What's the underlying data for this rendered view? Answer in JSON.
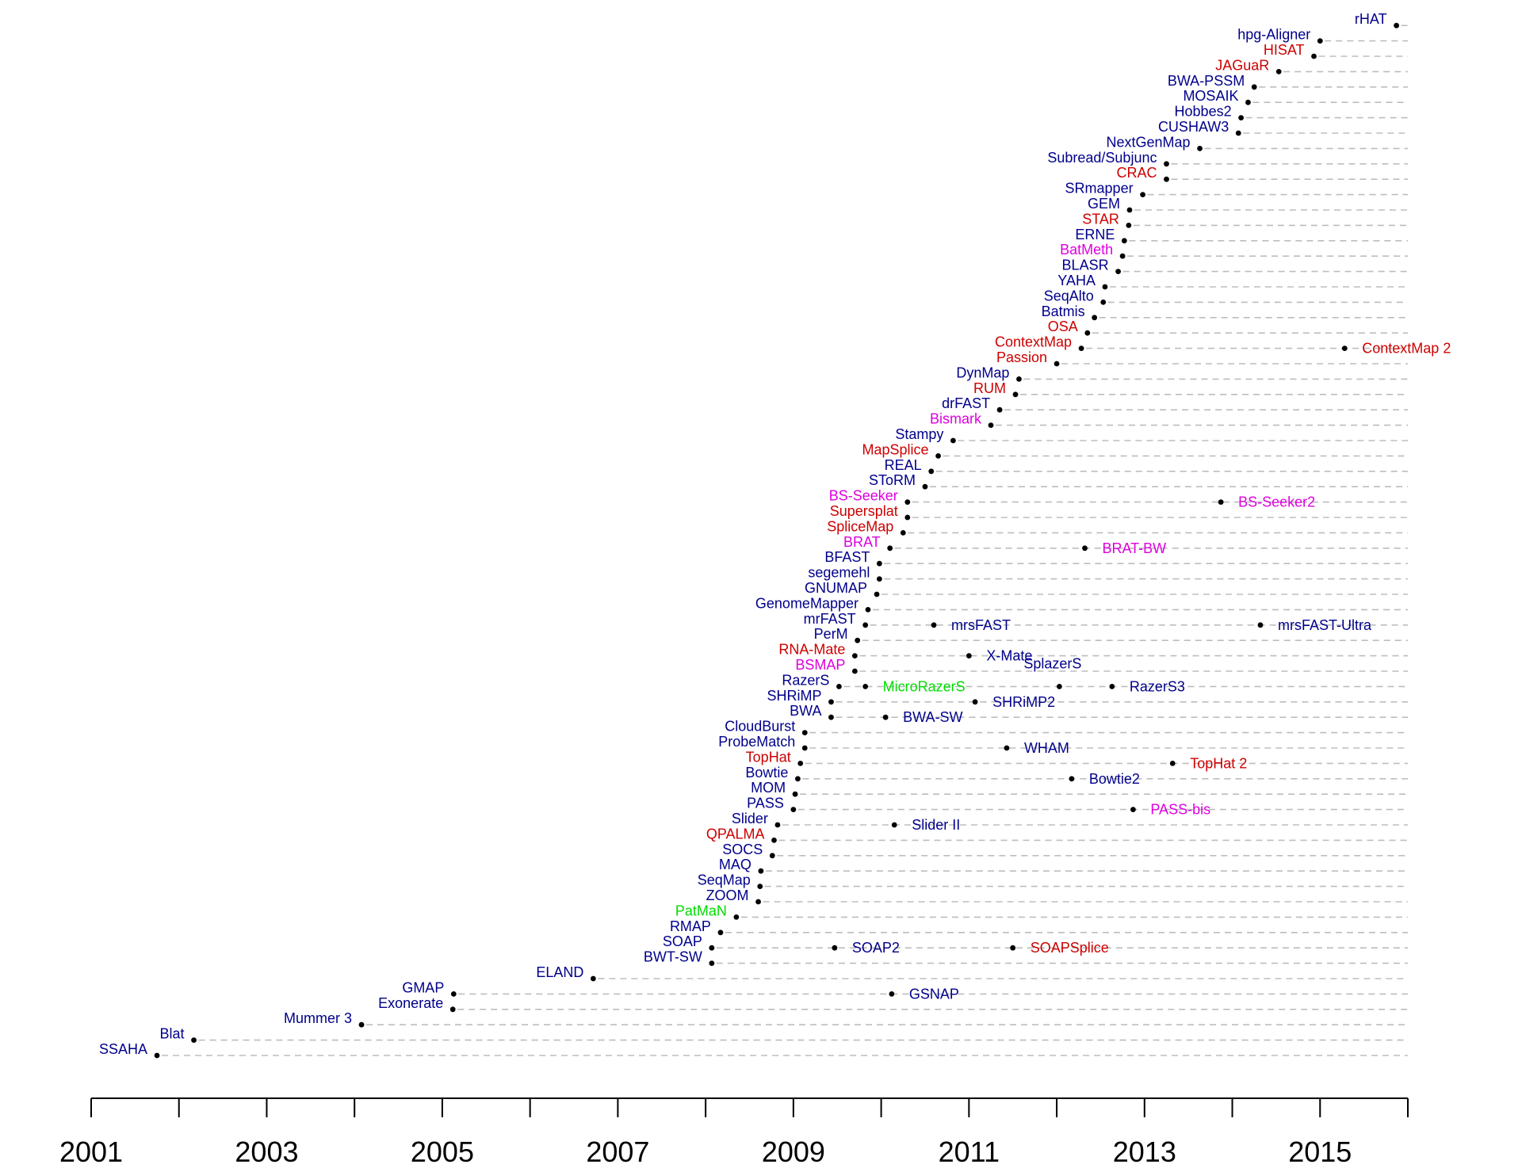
{
  "colors": {
    "blue": "#00008b",
    "red": "#cd0000",
    "magenta": "#dd00dd",
    "green": "#00dd00",
    "dash": "#bdbdbd",
    "point": "#000000",
    "axis": "#000000"
  },
  "chart_data": {
    "type": "scatter",
    "title": "",
    "xlabel": "",
    "ylabel": "",
    "xlim": [
      2001,
      2016
    ],
    "x_ticks": [
      2001,
      2002,
      2003,
      2004,
      2005,
      2006,
      2007,
      2008,
      2009,
      2010,
      2011,
      2012,
      2013,
      2014,
      2015,
      2016
    ],
    "x_tick_labels": [
      "2001",
      "2003",
      "2005",
      "2007",
      "2009",
      "2011",
      "2013",
      "2015"
    ],
    "x_tick_label_values": [
      2001,
      2003,
      2005,
      2007,
      2009,
      2011,
      2013,
      2015
    ],
    "grid": false,
    "rows": [
      {
        "tools": [
          {
            "name": "SSAHA",
            "x": 2001.75,
            "color": "blue"
          }
        ]
      },
      {
        "tools": [
          {
            "name": "Blat",
            "x": 2002.17,
            "color": "blue"
          }
        ]
      },
      {
        "tools": [
          {
            "name": "Mummer 3",
            "x": 2004.08,
            "color": "blue"
          }
        ]
      },
      {
        "tools": [
          {
            "name": "Exonerate",
            "x": 2005.12,
            "color": "blue"
          }
        ]
      },
      {
        "tools": [
          {
            "name": "GMAP",
            "x": 2005.13,
            "color": "blue"
          },
          {
            "name": "GSNAP",
            "x": 2010.12,
            "color": "blue"
          }
        ]
      },
      {
        "tools": [
          {
            "name": "ELAND",
            "x": 2006.72,
            "color": "blue"
          }
        ]
      },
      {
        "tools": [
          {
            "name": "BWT-SW",
            "x": 2008.07,
            "color": "blue"
          }
        ]
      },
      {
        "tools": [
          {
            "name": "SOAP",
            "x": 2008.07,
            "color": "blue"
          },
          {
            "name": "SOAP2",
            "x": 2009.47,
            "color": "blue"
          },
          {
            "name": "SOAPSplice",
            "x": 2011.5,
            "color": "red"
          }
        ]
      },
      {
        "tools": [
          {
            "name": "RMAP",
            "x": 2008.17,
            "color": "blue"
          }
        ]
      },
      {
        "tools": [
          {
            "name": "PatMaN",
            "x": 2008.35,
            "color": "green"
          }
        ]
      },
      {
        "tools": [
          {
            "name": "ZOOM",
            "x": 2008.6,
            "color": "blue"
          }
        ]
      },
      {
        "tools": [
          {
            "name": "SeqMap",
            "x": 2008.62,
            "color": "blue"
          }
        ]
      },
      {
        "tools": [
          {
            "name": "MAQ",
            "x": 2008.63,
            "color": "blue"
          }
        ]
      },
      {
        "tools": [
          {
            "name": "SOCS",
            "x": 2008.76,
            "color": "blue"
          }
        ]
      },
      {
        "tools": [
          {
            "name": "QPALMA",
            "x": 2008.78,
            "color": "red"
          }
        ]
      },
      {
        "tools": [
          {
            "name": "Slider",
            "x": 2008.82,
            "color": "blue"
          },
          {
            "name": "Slider II",
            "x": 2010.15,
            "color": "blue"
          }
        ]
      },
      {
        "tools": [
          {
            "name": "PASS",
            "x": 2009.0,
            "color": "blue"
          },
          {
            "name": "PASS-bis",
            "x": 2012.87,
            "color": "magenta"
          }
        ]
      },
      {
        "tools": [
          {
            "name": "MOM",
            "x": 2009.02,
            "color": "blue"
          }
        ]
      },
      {
        "tools": [
          {
            "name": "Bowtie",
            "x": 2009.05,
            "color": "blue"
          },
          {
            "name": "Bowtie2",
            "x": 2012.17,
            "color": "blue"
          }
        ]
      },
      {
        "tools": [
          {
            "name": "TopHat",
            "x": 2009.08,
            "color": "red"
          },
          {
            "name": "TopHat 2",
            "x": 2013.32,
            "color": "red"
          }
        ]
      },
      {
        "tools": [
          {
            "name": "ProbeMatch",
            "x": 2009.13,
            "color": "blue"
          },
          {
            "name": "WHAM",
            "x": 2011.43,
            "color": "blue"
          }
        ]
      },
      {
        "tools": [
          {
            "name": "CloudBurst",
            "x": 2009.13,
            "color": "blue"
          }
        ]
      },
      {
        "tools": [
          {
            "name": "BWA",
            "x": 2009.43,
            "color": "blue"
          },
          {
            "name": "BWA-SW",
            "x": 2010.05,
            "color": "blue"
          }
        ]
      },
      {
        "tools": [
          {
            "name": "SHRiMP",
            "x": 2009.43,
            "color": "blue"
          },
          {
            "name": "SHRiMP2",
            "x": 2011.07,
            "color": "blue"
          }
        ]
      },
      {
        "tools": [
          {
            "name": "RazerS",
            "x": 2009.52,
            "color": "blue"
          },
          {
            "name": "MicroRazerS",
            "x": 2009.82,
            "color": "green"
          },
          {
            "name": "SplazerS",
            "x": 2012.03,
            "color": "blue",
            "above": true
          },
          {
            "name": "RazerS3",
            "x": 2012.63,
            "color": "blue"
          }
        ]
      },
      {
        "tools": [
          {
            "name": "BSMAP",
            "x": 2009.7,
            "color": "magenta"
          }
        ]
      },
      {
        "tools": [
          {
            "name": "RNA-Mate",
            "x": 2009.7,
            "color": "red"
          },
          {
            "name": "X-Mate",
            "x": 2011.0,
            "color": "blue"
          }
        ]
      },
      {
        "tools": [
          {
            "name": "PerM",
            "x": 2009.73,
            "color": "blue"
          }
        ]
      },
      {
        "tools": [
          {
            "name": "mrFAST",
            "x": 2009.82,
            "color": "blue"
          },
          {
            "name": "mrsFAST",
            "x": 2010.6,
            "color": "blue"
          },
          {
            "name": "mrsFAST-Ultra",
            "x": 2014.32,
            "color": "blue"
          }
        ]
      },
      {
        "tools": [
          {
            "name": "GenomeMapper",
            "x": 2009.85,
            "color": "blue"
          }
        ]
      },
      {
        "tools": [
          {
            "name": "GNUMAP",
            "x": 2009.95,
            "color": "blue"
          }
        ]
      },
      {
        "tools": [
          {
            "name": "segemehl",
            "x": 2009.98,
            "color": "blue"
          }
        ]
      },
      {
        "tools": [
          {
            "name": "BFAST",
            "x": 2009.98,
            "color": "blue"
          }
        ]
      },
      {
        "tools": [
          {
            "name": "BRAT",
            "x": 2010.1,
            "color": "magenta"
          },
          {
            "name": "BRAT-BW",
            "x": 2012.32,
            "color": "magenta"
          }
        ]
      },
      {
        "tools": [
          {
            "name": "SpliceMap",
            "x": 2010.25,
            "color": "red"
          }
        ]
      },
      {
        "tools": [
          {
            "name": "Supersplat",
            "x": 2010.3,
            "color": "red"
          }
        ]
      },
      {
        "tools": [
          {
            "name": "BS-Seeker",
            "x": 2010.3,
            "color": "magenta"
          },
          {
            "name": "BS-Seeker2",
            "x": 2013.87,
            "color": "magenta"
          }
        ]
      },
      {
        "tools": [
          {
            "name": "SToRM",
            "x": 2010.5,
            "color": "blue"
          }
        ]
      },
      {
        "tools": [
          {
            "name": "REAL",
            "x": 2010.57,
            "color": "blue"
          }
        ]
      },
      {
        "tools": [
          {
            "name": "MapSplice",
            "x": 2010.65,
            "color": "red"
          }
        ]
      },
      {
        "tools": [
          {
            "name": "Stampy",
            "x": 2010.82,
            "color": "blue"
          }
        ]
      },
      {
        "tools": [
          {
            "name": "Bismark",
            "x": 2011.25,
            "color": "magenta"
          }
        ]
      },
      {
        "tools": [
          {
            "name": "drFAST",
            "x": 2011.35,
            "color": "blue"
          }
        ]
      },
      {
        "tools": [
          {
            "name": "RUM",
            "x": 2011.53,
            "color": "red"
          }
        ]
      },
      {
        "tools": [
          {
            "name": "DynMap",
            "x": 2011.57,
            "color": "blue"
          }
        ]
      },
      {
        "tools": [
          {
            "name": "Passion",
            "x": 2012.0,
            "color": "red"
          }
        ]
      },
      {
        "tools": [
          {
            "name": "ContextMap",
            "x": 2012.28,
            "color": "red"
          },
          {
            "name": "ContextMap 2",
            "x": 2015.28,
            "color": "red"
          }
        ]
      },
      {
        "tools": [
          {
            "name": "OSA",
            "x": 2012.35,
            "color": "red"
          }
        ]
      },
      {
        "tools": [
          {
            "name": "Batmis",
            "x": 2012.43,
            "color": "blue"
          }
        ]
      },
      {
        "tools": [
          {
            "name": "SeqAlto",
            "x": 2012.53,
            "color": "blue"
          }
        ]
      },
      {
        "tools": [
          {
            "name": "YAHA",
            "x": 2012.55,
            "color": "blue"
          }
        ]
      },
      {
        "tools": [
          {
            "name": "BLASR",
            "x": 2012.7,
            "color": "blue"
          }
        ]
      },
      {
        "tools": [
          {
            "name": "BatMeth",
            "x": 2012.75,
            "color": "magenta"
          }
        ]
      },
      {
        "tools": [
          {
            "name": "ERNE",
            "x": 2012.77,
            "color": "blue"
          }
        ]
      },
      {
        "tools": [
          {
            "name": "STAR",
            "x": 2012.82,
            "color": "red"
          }
        ]
      },
      {
        "tools": [
          {
            "name": "GEM",
            "x": 2012.83,
            "color": "blue"
          }
        ]
      },
      {
        "tools": [
          {
            "name": "SRmapper",
            "x": 2012.98,
            "color": "blue"
          }
        ]
      },
      {
        "tools": [
          {
            "name": "CRAC",
            "x": 2013.25,
            "color": "red"
          }
        ]
      },
      {
        "tools": [
          {
            "name": "Subread/Subjunc",
            "x": 2013.25,
            "color": "blue"
          }
        ]
      },
      {
        "tools": [
          {
            "name": "NextGenMap",
            "x": 2013.63,
            "color": "blue"
          }
        ]
      },
      {
        "tools": [
          {
            "name": "CUSHAW3",
            "x": 2014.07,
            "color": "blue"
          }
        ]
      },
      {
        "tools": [
          {
            "name": "Hobbes2",
            "x": 2014.1,
            "color": "blue"
          }
        ]
      },
      {
        "tools": [
          {
            "name": "MOSAIK",
            "x": 2014.18,
            "color": "blue"
          }
        ]
      },
      {
        "tools": [
          {
            "name": "BWA-PSSM",
            "x": 2014.25,
            "color": "blue"
          }
        ]
      },
      {
        "tools": [
          {
            "name": "JAGuaR",
            "x": 2014.53,
            "color": "red"
          }
        ]
      },
      {
        "tools": [
          {
            "name": "HISAT",
            "x": 2014.93,
            "color": "red"
          }
        ]
      },
      {
        "tools": [
          {
            "name": "hpg-Aligner",
            "x": 2015.0,
            "color": "blue"
          }
        ]
      },
      {
        "tools": [
          {
            "name": "rHAT",
            "x": 2015.87,
            "color": "blue"
          }
        ]
      }
    ]
  }
}
